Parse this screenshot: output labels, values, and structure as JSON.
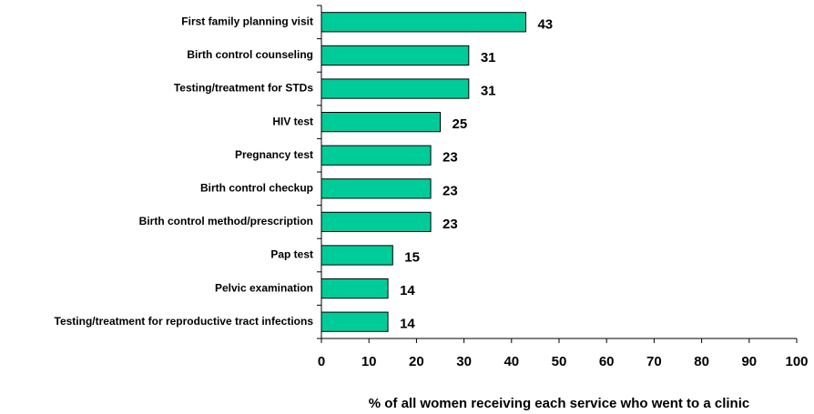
{
  "chart_data": {
    "type": "bar",
    "orientation": "horizontal",
    "x_label": "% of all women receiving each service who went to a clinic",
    "categories": [
      "First family planning visit",
      "Birth control counseling",
      "Testing/treatment for STDs",
      "HIV test",
      "Pregnancy test",
      "Birth control checkup",
      "Birth control method/prescription",
      "Pap test",
      "Pelvic examination",
      "Testing/treatment for reproductive tract infections"
    ],
    "values": [
      43,
      31,
      31,
      25,
      23,
      23,
      23,
      15,
      14,
      14
    ],
    "color": "#00cc99",
    "xlim": [
      0,
      100
    ],
    "xticks": [
      0,
      10,
      20,
      30,
      40,
      50,
      60,
      70,
      80,
      90,
      100
    ],
    "grid": false
  }
}
